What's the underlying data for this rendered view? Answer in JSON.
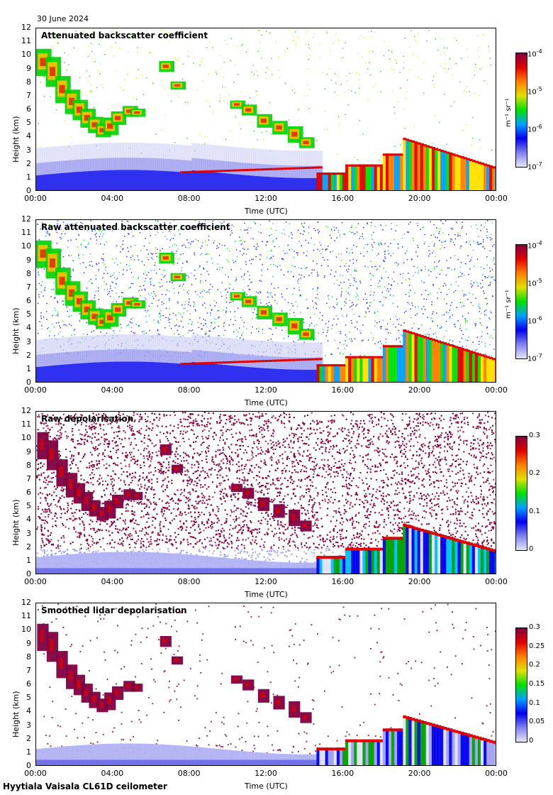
{
  "header": {
    "date": "30 June 2024"
  },
  "footer": {
    "label": "Hyytiala Vaisala CL61D ceilometer"
  },
  "axes": {
    "ylabel": "Height (km)",
    "xlabel": "Time (UTC)",
    "yticks": [
      "0",
      "1",
      "2",
      "3",
      "4",
      "5",
      "6",
      "7",
      "8",
      "9",
      "10",
      "11",
      "12"
    ],
    "xticks": [
      "00:00",
      "04:00",
      "08:00",
      "12:00",
      "16:00",
      "20:00",
      "00:00"
    ]
  },
  "colorbars": {
    "backscatter": {
      "ticks": [
        "10",
        "10",
        "10",
        "10"
      ],
      "exps": [
        "-4",
        "-5",
        "-6",
        "-7"
      ],
      "unit": "m⁻¹ sr⁻¹"
    },
    "raw_depol": {
      "ticks": [
        "0.3",
        "0.2",
        "0.1",
        "0"
      ]
    },
    "smoothed_depol": {
      "ticks": [
        "0.3",
        "0.25",
        "0.2",
        "0.15",
        "0.1",
        "0.05",
        "0"
      ]
    }
  },
  "colors": {
    "scale": [
      "#e6e6f8",
      "#8080ee",
      "#0000ee",
      "#00a0ff",
      "#00e000",
      "#e0e000",
      "#ff8000",
      "#e00000",
      "#800040"
    ]
  },
  "chart_data": [
    {
      "type": "heatmap",
      "title": "Attenuated backscatter coefficient",
      "xlim": [
        "00:00",
        "00:00"
      ],
      "ylim": [
        0,
        12
      ],
      "colorscale": "log",
      "clim": [
        1e-07,
        0.0001
      ]
    },
    {
      "type": "heatmap",
      "title": "Raw attenuated backscatter coefficient",
      "xlim": [
        "00:00",
        "00:00"
      ],
      "ylim": [
        0,
        12
      ],
      "colorscale": "log",
      "clim": [
        1e-07,
        0.0001
      ]
    },
    {
      "type": "heatmap",
      "title": "Raw depolarisation",
      "xlim": [
        "00:00",
        "00:00"
      ],
      "ylim": [
        0,
        12
      ],
      "clim": [
        0,
        0.3
      ]
    },
    {
      "type": "heatmap",
      "title": "Smoothed lidar depolarisation",
      "xlim": [
        "00:00",
        "00:00"
      ],
      "ylim": [
        0,
        12
      ],
      "clim": [
        0,
        0.3
      ]
    }
  ]
}
